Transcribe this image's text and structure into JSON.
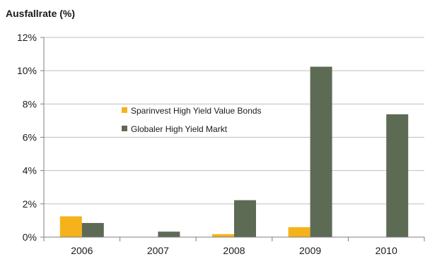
{
  "chart_data": {
    "type": "bar",
    "ylabel": "Ausfallrate (%)",
    "categories": [
      "2006",
      "2007",
      "2008",
      "2009",
      "2010"
    ],
    "series": [
      {
        "name": "Sparinvest High Yield Value Bonds",
        "color": "#f6b21b",
        "values": [
          1.25,
          0,
          0.18,
          0.6,
          0
        ]
      },
      {
        "name": "Globaler High Yield Markt",
        "color": "#5d6b55",
        "values": [
          0.85,
          0.33,
          2.22,
          10.24,
          7.38
        ]
      }
    ],
    "ylim": [
      0,
      12
    ],
    "yticks": [
      {
        "value": 0,
        "label": "0%"
      },
      {
        "value": 2,
        "label": "2%"
      },
      {
        "value": 4,
        "label": "4%"
      },
      {
        "value": 6,
        "label": "6%"
      },
      {
        "value": 8,
        "label": "8%"
      },
      {
        "value": 10,
        "label": "10%"
      },
      {
        "value": 12,
        "label": "12%"
      }
    ],
    "grid": true,
    "legend_position": "center"
  }
}
